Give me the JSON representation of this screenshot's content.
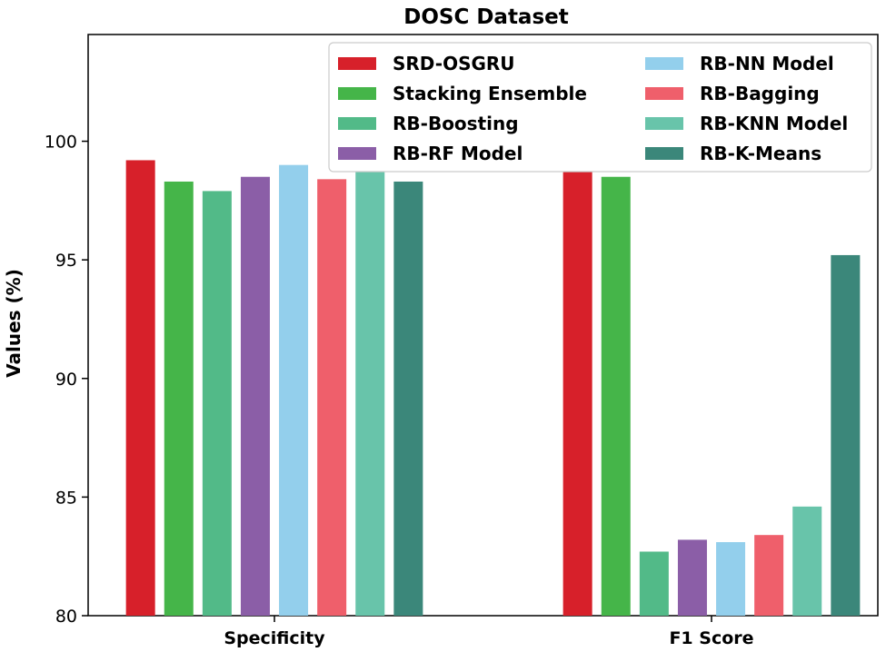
{
  "chart_data": {
    "type": "bar",
    "title": "DOSC Dataset",
    "xlabel": "",
    "ylabel": "Values (%)",
    "ylim": [
      80,
      104.5
    ],
    "yticks": [
      80,
      85,
      90,
      95,
      100
    ],
    "categories": [
      "Specificity",
      "F1 Score"
    ],
    "legend_position": "top-right",
    "legend_columns": 2,
    "series": [
      {
        "name": "SRD-OSGRU",
        "color": "#d7202a",
        "values": [
          99.2,
          99.2
        ]
      },
      {
        "name": "Stacking Ensemble",
        "color": "#45b549",
        "values": [
          98.3,
          98.5
        ]
      },
      {
        "name": "RB-Boosting",
        "color": "#52ba88",
        "values": [
          97.9,
          82.7
        ]
      },
      {
        "name": "RB-RF Model",
        "color": "#8b5ea7",
        "values": [
          98.5,
          83.2
        ]
      },
      {
        "name": "RB-NN Model",
        "color": "#93cfec",
        "values": [
          99.0,
          83.1
        ]
      },
      {
        "name": "RB-Bagging",
        "color": "#ef5f6b",
        "values": [
          98.4,
          83.4
        ]
      },
      {
        "name": "RB-KNN Model",
        "color": "#68c4aa",
        "values": [
          98.8,
          84.6
        ]
      },
      {
        "name": "RB-K-Means",
        "color": "#3b877a",
        "values": [
          98.3,
          95.2
        ]
      }
    ]
  }
}
